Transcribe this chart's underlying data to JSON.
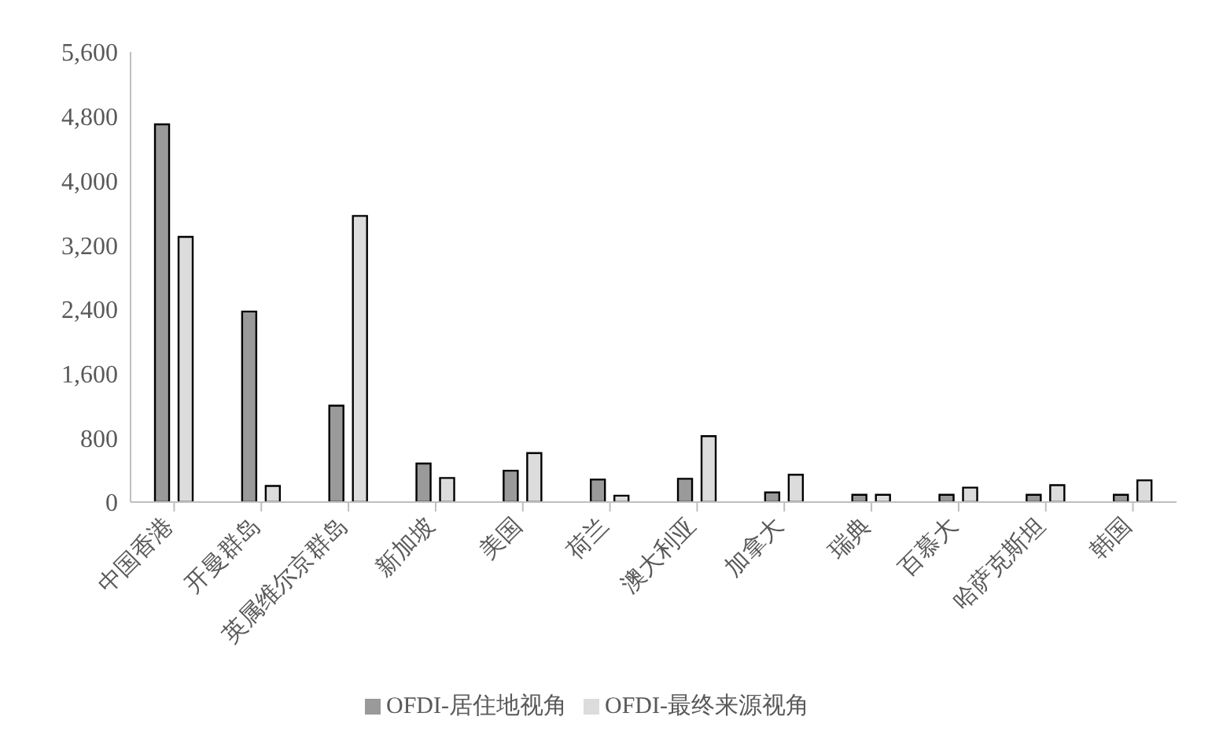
{
  "chart_data": {
    "type": "bar",
    "categories": [
      "中国香港",
      "开曼群岛",
      "英属维尔京群岛",
      "新加坡",
      "美国",
      "荷兰",
      "澳大利亚",
      "加拿大",
      "瑞典",
      "百慕大",
      "哈萨克斯坦",
      "韩国"
    ],
    "series": [
      {
        "name": "OFDI-居住地视角",
        "color": "#9a9a9a",
        "values": [
          4700,
          2370,
          1200,
          480,
          390,
          280,
          290,
          120,
          90,
          90,
          90,
          90
        ]
      },
      {
        "name": "OFDI-最终来源视角",
        "color": "#dcdcdc",
        "values": [
          3300,
          200,
          3560,
          300,
          610,
          80,
          820,
          340,
          90,
          180,
          210,
          270
        ]
      }
    ],
    "ylim": [
      0,
      5600
    ],
    "yticks": [
      {
        "value": 0,
        "label": "0"
      },
      {
        "value": 800,
        "label": "800"
      },
      {
        "value": 1600,
        "label": "1,600"
      },
      {
        "value": 2400,
        "label": "2,400"
      },
      {
        "value": 3200,
        "label": "3,200"
      },
      {
        "value": 4000,
        "label": "4,000"
      },
      {
        "value": 4800,
        "label": "4,800"
      },
      {
        "value": 5600,
        "label": "5,600"
      }
    ],
    "grid": false,
    "legend": "bottom"
  }
}
